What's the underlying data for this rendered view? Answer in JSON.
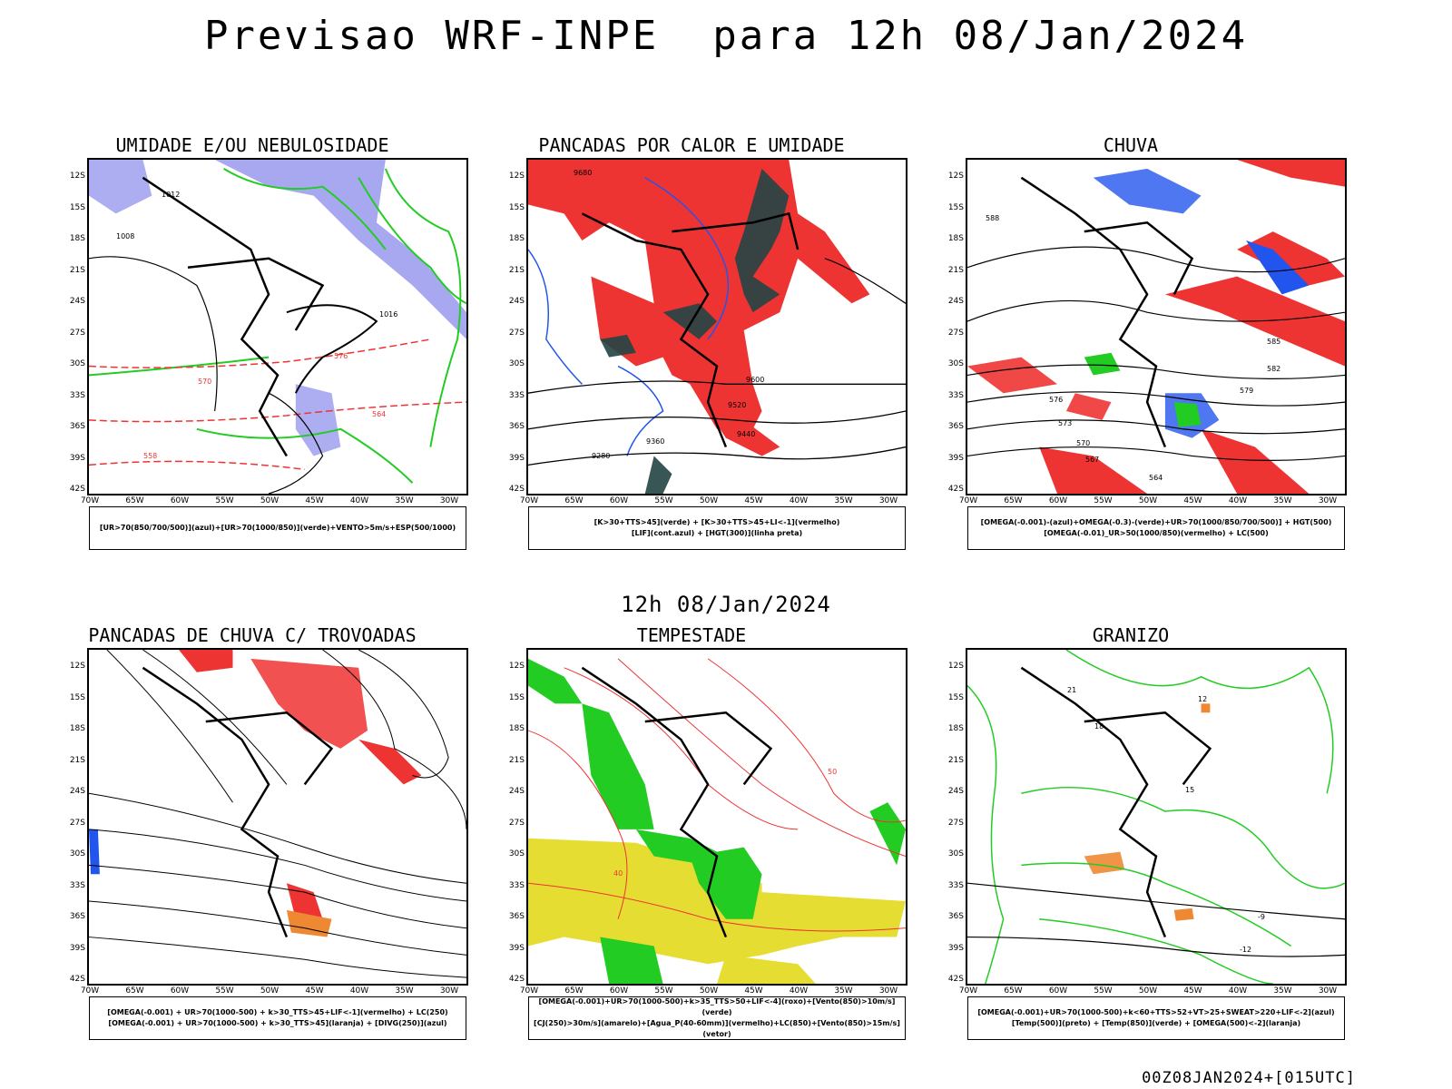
{
  "title": "Previsao WRF-INPE  para 12h 08/Jan/2024",
  "mid_time": "12h 08/Jan/2024",
  "footer": "00Z08JAN2024+[015UTC]",
  "lat_labels": [
    "12S",
    "15S",
    "18S",
    "21S",
    "24S",
    "27S",
    "30S",
    "33S",
    "36S",
    "39S",
    "42S"
  ],
  "lon_labels": [
    "70W",
    "65W",
    "60W",
    "55W",
    "50W",
    "45W",
    "40W",
    "35W",
    "30W"
  ],
  "panels": [
    {
      "title": "UMIDADE E/OU NEBULOSIDADE",
      "legend": [
        "[UR>70(850/700/500)](azul)+[UR>70(1000/850)](verde)+VENTO>5m/s+ESP(500/1000)"
      ],
      "contour_labels": [
        "1012",
        "1016",
        "1008",
        "576",
        "570",
        "564",
        "558"
      ]
    },
    {
      "title": "PANCADAS POR CALOR E UMIDADE",
      "legend": [
        "[K>30+TTS>45](verde) + [K>30+TTS>45+LI<-1](vermelho)",
        "[LIF](cont.azul) + [HGT(300)](linha preta)"
      ],
      "contour_labels": [
        "9680",
        "9600",
        "9520",
        "9440",
        "9360",
        "9280"
      ]
    },
    {
      "title": "CHUVA",
      "legend": [
        "[OMEGA(-0.001)-(azul)+OMEGA(-0.3)-(verde)+UR>70(1000/850/700/500)] + HGT(500)",
        "[OMEGA(-0.01)_UR>50(1000/850)(vermelho) + LC(500)"
      ],
      "contour_labels": [
        "588",
        "585",
        "582",
        "579",
        "576",
        "573",
        "570",
        "567",
        "564"
      ]
    },
    {
      "title": "PANCADAS DE CHUVA C/ TROVOADAS",
      "legend": [
        "[OMEGA(-0.001) + UR>70(1000-500) + k>30_TTS>45+LIF<-1](vermelho) + LC(250)",
        "[OMEGA(-0.001) + UR>70(1000-500) + k>30_TTS>45](laranja) + [DIVG(250)](azul)"
      ],
      "contour_labels": []
    },
    {
      "title": "TEMPESTADE",
      "legend": [
        "[OMEGA(-0.001)+UR>70(1000-500)+k>35_TTS>50+LIF<-4](roxo)+[Vento(850)>10m/s](verde)",
        "[CJ(250)>30m/s](amarelo)+[Agua_P(40-60mm)](vermelho)+LC(850)+[Vento(850)>15m/s](vetor)"
      ],
      "contour_labels": [
        "40",
        "50"
      ]
    },
    {
      "title": "GRANIZO",
      "legend": [
        "[OMEGA(-0.001)+UR>70(1000-500)+k<60+TTS>52+VT>25+SWEAT>220+LIF<-2](azul)",
        "[Temp(500)](preto) + [Temp(850)](verde) + [OMEGA(500)<-2](laranja)"
      ],
      "contour_labels": [
        "12",
        "15",
        "18",
        "21",
        "-9",
        "-12"
      ]
    }
  ],
  "colors": {
    "red": "#ee3333",
    "green": "#22cc22",
    "blue": "#2255ee",
    "lightblue": "#9999ee",
    "darkgreen": "#224444",
    "yellow": "#e6dd33",
    "orange": "#ee8833"
  }
}
